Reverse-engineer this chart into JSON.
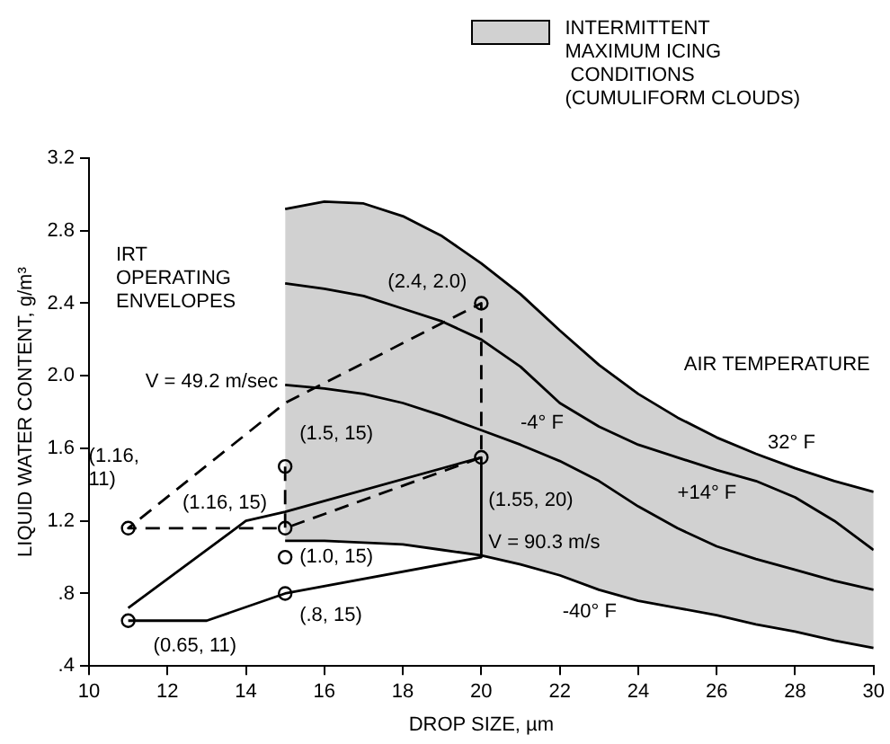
{
  "chart_data": {
    "type": "line",
    "xlabel": "DROP SIZE, µm",
    "ylabel": "LIQUID WATER CONTENT, g/m³",
    "xlim": [
      10,
      30
    ],
    "xticks": [
      10,
      12,
      14,
      16,
      18,
      20,
      22,
      24,
      26,
      28,
      30
    ],
    "ylim": [
      0.4,
      3.2
    ],
    "yticks": [
      {
        "value": 0.4,
        "label": ".4"
      },
      {
        "value": 0.8,
        "label": ".8"
      },
      1.2,
      1.6,
      {
        "value": 2,
        "label": "2.0"
      },
      2.4,
      2.8,
      3.2
    ],
    "grid": false,
    "legend": "top right",
    "annotations": [
      "IRT OPERATING ENVELOPES",
      "AIR TEMPERATURE",
      {
        "text": "32° F",
        "x": 28,
        "y": 1.49
      }
    ],
    "series": [
      {
        "type": "area",
        "name": "INTERMITTENT\nMAXIMUM ICING\n CONDITIONS\n(CUMULIFORM CLOUDS)",
        "color": "#000000",
        "x": [
          15,
          16,
          17,
          18,
          19,
          20,
          21,
          22,
          23,
          24,
          25,
          26,
          27,
          28,
          29,
          30
        ],
        "values": [
          2.92,
          2.96,
          2.95,
          2.88,
          2.77,
          2.62,
          2.45,
          2.25,
          2.06,
          1.9,
          1.77,
          1.66,
          1.57,
          1.49,
          1.42,
          1.36
        ]
      },
      {
        "name": "+14° F",
        "color": "#000000",
        "x": [
          15,
          16,
          17,
          18,
          19,
          20,
          21,
          22,
          23,
          24,
          25,
          26,
          27,
          28,
          29,
          30
        ],
        "values": [
          2.51,
          2.48,
          2.44,
          2.37,
          2.3,
          2.2,
          2.05,
          1.85,
          1.72,
          1.62,
          1.55,
          1.48,
          1.42,
          1.33,
          1.2,
          1.04
        ]
      },
      {
        "name": "-4° F",
        "color": "#000000",
        "x": [
          15,
          16,
          17,
          18,
          19,
          20,
          21,
          22,
          23,
          24,
          25,
          26,
          27,
          28,
          29,
          30
        ],
        "values": [
          1.95,
          1.93,
          1.9,
          1.85,
          1.78,
          1.7,
          1.62,
          1.53,
          1.42,
          1.28,
          1.16,
          1.06,
          0.99,
          0.93,
          0.87,
          0.82
        ]
      },
      {
        "name": "-40° F",
        "color": "#000000",
        "x": [
          15,
          16,
          17,
          18,
          19,
          20,
          21,
          22,
          23,
          24,
          25,
          26,
          27,
          28,
          29,
          30
        ],
        "values": [
          1.09,
          1.09,
          1.08,
          1.07,
          1.04,
          1.01,
          0.96,
          0.9,
          0.82,
          0.76,
          0.72,
          0.68,
          0.63,
          0.59,
          0.54,
          0.5
        ]
      },
      {
        "name": "V = 49.2 m/sec",
        "color": "#000000",
        "line_style": "dashed",
        "x": [
          15,
          15,
          11,
          15,
          20,
          20,
          15
        ],
        "values": [
          1.5,
          1.16,
          1.16,
          1.85,
          2.4,
          1.55,
          1.16
        ]
      },
      {
        "name": "V = 90.3 m/s",
        "color": "#000000",
        "x": [
          11,
          13,
          15,
          20,
          20,
          15,
          14,
          11
        ],
        "values": [
          0.65,
          0.65,
          0.8,
          1.0,
          1.55,
          1.25,
          1.2,
          0.72
        ]
      },
      {
        "type": "scatter",
        "color": "#000000",
        "marker": "circle",
        "x": [
          11,
          11,
          15,
          15,
          15,
          15,
          20,
          20
        ],
        "values": [
          1.16,
          0.65,
          1.5,
          1.16,
          1.0,
          0.8,
          1.55,
          2.4
        ],
        "value_labels": [
          "(1.16,\n11)",
          "(0.65, 11)",
          "(1.5, 15)",
          "(1.16, 15)",
          "(1.0, 15)",
          "(.8, 15)",
          "(1.55, 20)",
          "(2.4, 2.0)"
        ]
      }
    ]
  }
}
